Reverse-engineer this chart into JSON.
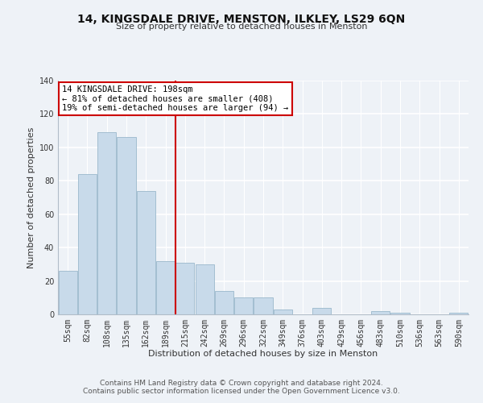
{
  "title": "14, KINGSDALE DRIVE, MENSTON, ILKLEY, LS29 6QN",
  "subtitle": "Size of property relative to detached houses in Menston",
  "xlabel": "Distribution of detached houses by size in Menston",
  "ylabel": "Number of detached properties",
  "footer_line1": "Contains HM Land Registry data © Crown copyright and database right 2024.",
  "footer_line2": "Contains public sector information licensed under the Open Government Licence v3.0.",
  "bar_labels": [
    "55sqm",
    "82sqm",
    "108sqm",
    "135sqm",
    "162sqm",
    "189sqm",
    "215sqm",
    "242sqm",
    "269sqm",
    "296sqm",
    "322sqm",
    "349sqm",
    "376sqm",
    "403sqm",
    "429sqm",
    "456sqm",
    "483sqm",
    "510sqm",
    "536sqm",
    "563sqm",
    "590sqm"
  ],
  "bar_values": [
    26,
    84,
    109,
    106,
    74,
    32,
    31,
    30,
    14,
    10,
    10,
    3,
    0,
    4,
    0,
    0,
    2,
    1,
    0,
    0,
    1
  ],
  "bar_color": "#c8daea",
  "bar_edge_color": "#9ab8cc",
  "vline_x_index": 5.5,
  "vline_color": "#cc0000",
  "annotation_title": "14 KINGSDALE DRIVE: 198sqm",
  "annotation_line1": "← 81% of detached houses are smaller (408)",
  "annotation_line2": "19% of semi-detached houses are larger (94) →",
  "annotation_box_facecolor": "#ffffff",
  "annotation_box_edgecolor": "#cc0000",
  "ylim_max": 140,
  "yticks": [
    0,
    20,
    40,
    60,
    80,
    100,
    120,
    140
  ],
  "background_color": "#eef2f7",
  "grid_color": "#d0d8e4",
  "title_fontsize": 10,
  "subtitle_fontsize": 8,
  "axis_label_fontsize": 8,
  "tick_fontsize": 7,
  "footer_fontsize": 6.5
}
